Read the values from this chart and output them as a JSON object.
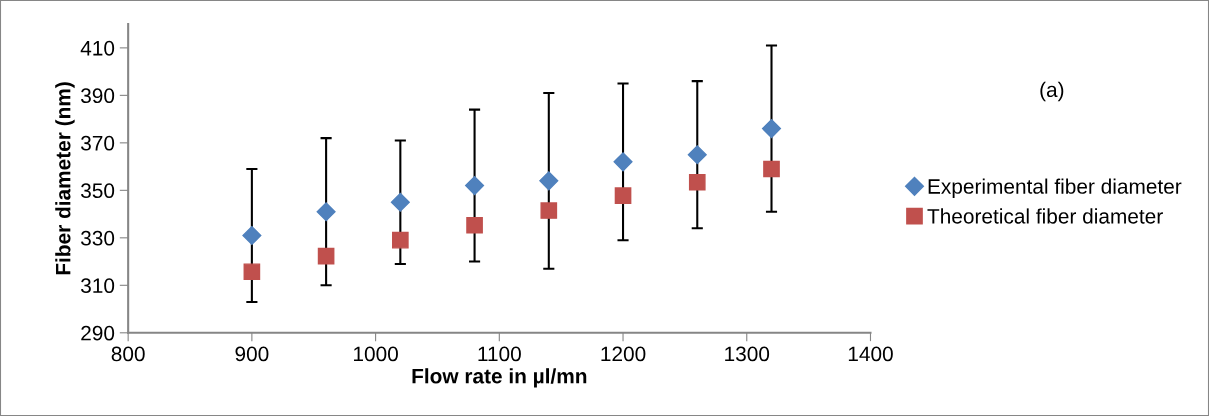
{
  "chart_data": {
    "type": "scatter",
    "xlabel": "Flow rate in µl/mn",
    "ylabel": "Fiber diameter (nm)",
    "x": [
      900,
      960,
      1020,
      1080,
      1140,
      1200,
      1260,
      1320
    ],
    "series": [
      {
        "name": "Experimental fiber diameter",
        "color": "#4f81bd",
        "marker": "diamond",
        "values": [
          331,
          341,
          345,
          352,
          354,
          362,
          365,
          376
        ],
        "errors": [
          28,
          31,
          26,
          32,
          37,
          33,
          31,
          35
        ]
      },
      {
        "name": "Theoretical fiber diameter",
        "color": "#c0504d",
        "marker": "square",
        "values": [
          315.7,
          322.3,
          329,
          335.3,
          341.5,
          347.8,
          353.4,
          359
        ]
      }
    ],
    "xlim": [
      800,
      1400
    ],
    "xticks": [
      800,
      900,
      1000,
      1100,
      1200,
      1300,
      1400
    ],
    "ylim": [
      290,
      420
    ],
    "yticks": [
      290,
      310,
      330,
      350,
      370,
      390,
      410
    ],
    "grid": false,
    "legend": "right",
    "annotations": [
      "(a)"
    ]
  }
}
